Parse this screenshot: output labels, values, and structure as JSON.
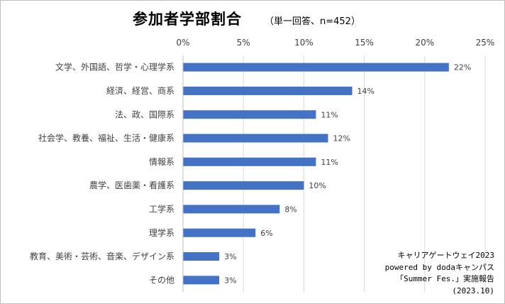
{
  "chart_data": {
    "type": "bar",
    "orientation": "horizontal",
    "title": "参加者学部割合",
    "subtitle": "（単一回答、n=452）",
    "categories": [
      "文学、外国語、哲学・心理学系",
      "経済、経営、商系",
      "法、政、国際系",
      "社会学、教養、福祉、生活・健康系",
      "情報系",
      "農学、医歯薬・看護系",
      "工学系",
      "理学系",
      "教育、美術・芸術、音楽、デザイン系",
      "その他"
    ],
    "values": [
      22,
      14,
      11,
      12,
      11,
      10,
      8,
      6,
      3,
      3
    ],
    "data_labels": [
      "22%",
      "14%",
      "11%",
      "12%",
      "11%",
      "10%",
      "8%",
      "6%",
      "3%",
      "3%"
    ],
    "xlim": [
      0,
      25
    ],
    "xticks": [
      0,
      5,
      10,
      15,
      20,
      25
    ],
    "xtick_labels": [
      "0%",
      "5%",
      "10%",
      "15%",
      "20%",
      "25%"
    ],
    "axis_position": "top",
    "grid": true,
    "legend": "none",
    "bar_color": "#4472c4"
  },
  "source_note": [
    "キャリアゲートウェイ2023",
    "powered by dodaキャンパス",
    "「Summer Fes.」実施報告",
    "(2023.10)"
  ]
}
